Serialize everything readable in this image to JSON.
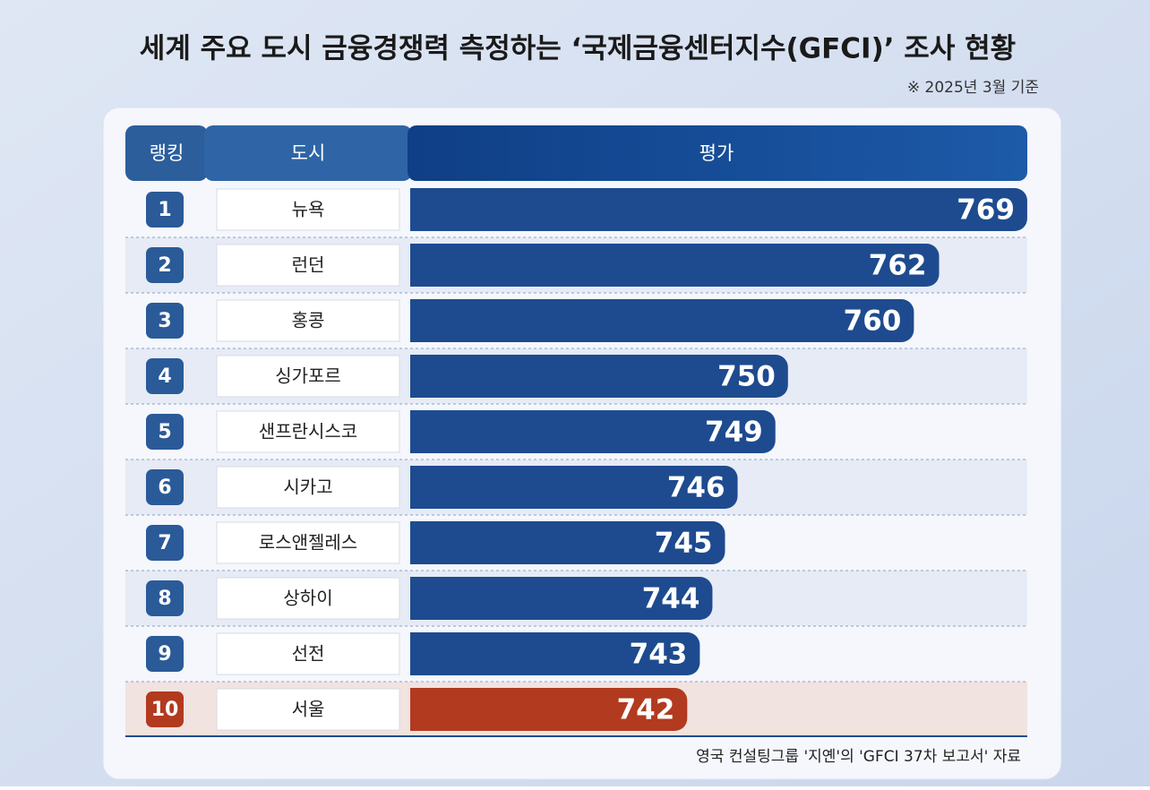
{
  "chart_data": {
    "type": "bar",
    "orientation": "horizontal",
    "title": "세계 주요 도시 금융경쟁력 측정하는 ‘국제금융센터지수(GFCI)’ 조사 현황",
    "subtitle": "※ 2025년 3월 기준",
    "source": "영국 컨설팅그룹 '지옌'의 'GFCI 37차 보고서' 자료",
    "headers": [
      "랭킹",
      "도시",
      "평가"
    ],
    "ranks": [
      1,
      2,
      3,
      4,
      5,
      6,
      7,
      8,
      9,
      10
    ],
    "categories": [
      "뉴욕",
      "런던",
      "홍콩",
      "싱가포르",
      "샌프란시스코",
      "시카고",
      "로스앤젤레스",
      "상하이",
      "선전",
      "서울"
    ],
    "values": [
      769,
      762,
      760,
      750,
      749,
      746,
      745,
      744,
      743,
      742
    ],
    "colors": [
      "#1e4b8f",
      "#1e4b8f",
      "#1e4b8f",
      "#1e4b8f",
      "#1e4b8f",
      "#1e4b8f",
      "#1e4b8f",
      "#1e4b8f",
      "#1e4b8f",
      "#b23a1f"
    ],
    "xlim": [
      720,
      770
    ]
  }
}
